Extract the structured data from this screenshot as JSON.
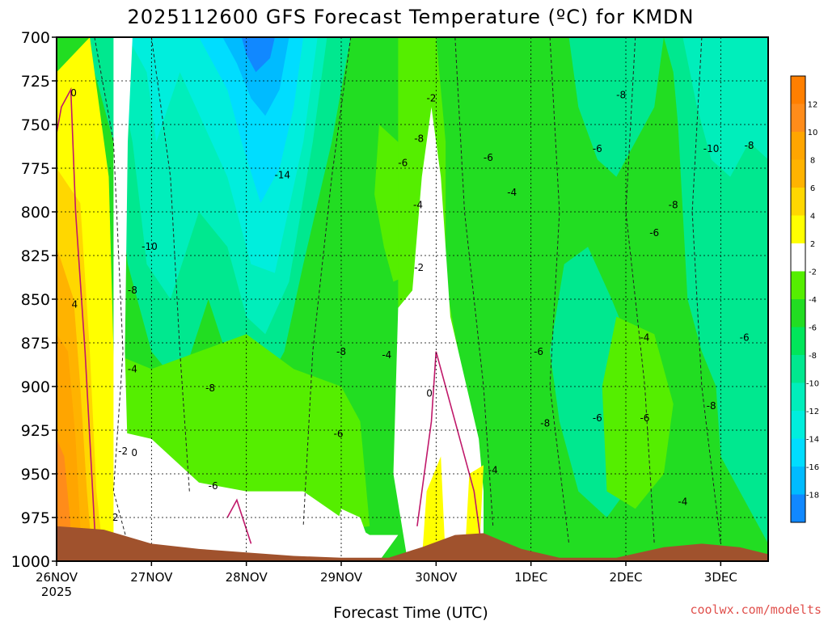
{
  "chart_data": {
    "type": "heatmap",
    "title": "2025112600 GFS Forecast Temperature (ºC) for KMDN",
    "xlabel": "Forecast Time (UTC)",
    "ylabel": "",
    "x_ticks": [
      "26NOV",
      "27NOV",
      "28NOV",
      "29NOV",
      "30NOV",
      "1DEC",
      "2DEC",
      "3DEC"
    ],
    "x_sub_label": "2025",
    "y_ticks": [
      700,
      725,
      750,
      775,
      800,
      825,
      850,
      875,
      900,
      925,
      950,
      975,
      1000
    ],
    "ylim": [
      1000,
      700
    ],
    "xlim_days": [
      0,
      7.5
    ],
    "y_unit": "hPa",
    "grid": true,
    "colorbar": {
      "ticks": [
        12,
        10,
        8,
        6,
        4,
        2,
        -2,
        -4,
        -6,
        -8,
        -10,
        -12,
        -14,
        -16,
        -18
      ],
      "bands": [
        {
          "min": 12,
          "max": 14,
          "color": "#ff7f00"
        },
        {
          "min": 10,
          "max": 12,
          "color": "#ff8c1a"
        },
        {
          "min": 8,
          "max": 10,
          "color": "#ffa500"
        },
        {
          "min": 6,
          "max": 8,
          "color": "#ffb300"
        },
        {
          "min": 4,
          "max": 6,
          "color": "#ffd700"
        },
        {
          "min": 2,
          "max": 4,
          "color": "#ffff00"
        },
        {
          "min": -2,
          "max": 2,
          "color": "#ffffff"
        },
        {
          "min": -4,
          "max": -2,
          "color": "#55ee00"
        },
        {
          "min": -6,
          "max": -4,
          "color": "#22dd22"
        },
        {
          "min": -8,
          "max": -6,
          "color": "#00e65a"
        },
        {
          "min": -10,
          "max": -8,
          "color": "#00e88f"
        },
        {
          "min": -12,
          "max": -10,
          "color": "#00eebb"
        },
        {
          "min": -14,
          "max": -12,
          "color": "#00eedd"
        },
        {
          "min": -16,
          "max": -14,
          "color": "#00ddff"
        },
        {
          "min": -18,
          "max": -16,
          "color": "#00bbff"
        },
        {
          "min": -20,
          "max": -18,
          "color": "#1188ff"
        }
      ]
    },
    "contour_labels": [
      {
        "t": 0.18,
        "p": 732,
        "text": "0"
      },
      {
        "t": 0.19,
        "p": 853,
        "text": "4"
      },
      {
        "t": 0.7,
        "p": 937,
        "text": "-2"
      },
      {
        "t": 0.82,
        "p": 938,
        "text": "0"
      },
      {
        "t": 0.62,
        "p": 975,
        "text": "2"
      },
      {
        "t": 0.8,
        "p": 890,
        "text": "-4"
      },
      {
        "t": 0.8,
        "p": 845,
        "text": "-8"
      },
      {
        "t": 0.98,
        "p": 820,
        "text": "-10"
      },
      {
        "t": 2.38,
        "p": 779,
        "text": "-14"
      },
      {
        "t": 1.65,
        "p": 957,
        "text": "-6"
      },
      {
        "t": 1.62,
        "p": 901,
        "text": "-8"
      },
      {
        "t": 2.97,
        "p": 927,
        "text": "-6"
      },
      {
        "t": 3.0,
        "p": 880,
        "text": "-8"
      },
      {
        "t": 3.48,
        "p": 882,
        "text": "-4"
      },
      {
        "t": 3.65,
        "p": 772,
        "text": "-6"
      },
      {
        "t": 3.82,
        "p": 758,
        "text": "-8"
      },
      {
        "t": 3.81,
        "p": 796,
        "text": "-4"
      },
      {
        "t": 3.82,
        "p": 832,
        "text": "-2"
      },
      {
        "t": 3.95,
        "p": 735,
        "text": "-2"
      },
      {
        "t": 3.93,
        "p": 904,
        "text": "0"
      },
      {
        "t": 4.6,
        "p": 948,
        "text": "-4"
      },
      {
        "t": 4.55,
        "p": 769,
        "text": "-6"
      },
      {
        "t": 4.8,
        "p": 789,
        "text": "-4"
      },
      {
        "t": 5.08,
        "p": 880,
        "text": "-6"
      },
      {
        "t": 5.15,
        "p": 921,
        "text": "-8"
      },
      {
        "t": 5.7,
        "p": 764,
        "text": "-6"
      },
      {
        "t": 5.95,
        "p": 733,
        "text": "-8"
      },
      {
        "t": 5.7,
        "p": 918,
        "text": "-6"
      },
      {
        "t": 6.2,
        "p": 872,
        "text": "-4"
      },
      {
        "t": 6.3,
        "p": 812,
        "text": "-6"
      },
      {
        "t": 6.2,
        "p": 918,
        "text": "-6"
      },
      {
        "t": 6.5,
        "p": 796,
        "text": "-8"
      },
      {
        "t": 6.6,
        "p": 966,
        "text": "-4"
      },
      {
        "t": 6.9,
        "p": 764,
        "text": "-10"
      },
      {
        "t": 7.3,
        "p": 762,
        "text": "-8"
      },
      {
        "t": 7.25,
        "p": 872,
        "text": "-6"
      },
      {
        "t": 6.9,
        "p": 911,
        "text": "-8"
      }
    ]
  },
  "credit": "coolwx.com/modelts"
}
